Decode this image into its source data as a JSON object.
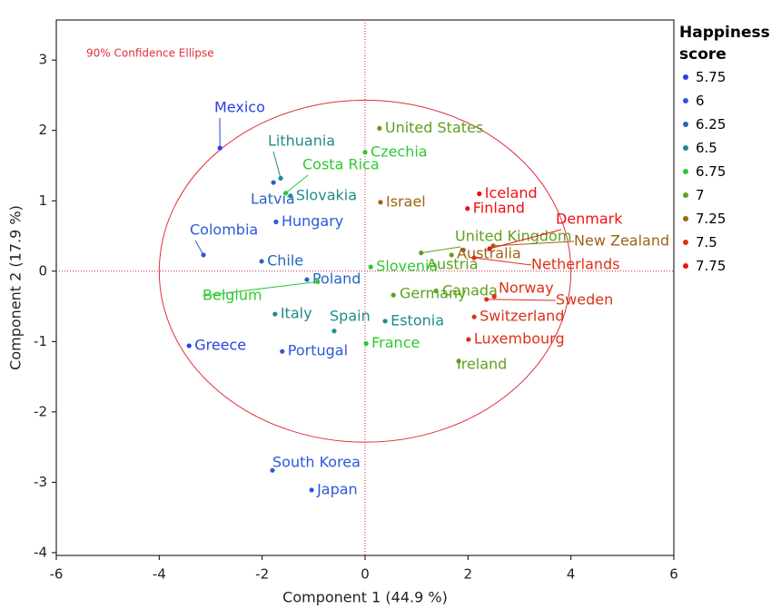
{
  "chart_data": {
    "type": "scatter",
    "annotation": "90% Confidence Ellipse",
    "x_label": "Component 1  (44.9 %)",
    "y_label": "Component 2  (17.9 %)",
    "legend_title": "Happiness score",
    "xlim": [
      -6,
      6
    ],
    "ylim": [
      -4.04,
      3.57
    ],
    "xticks": [
      -6,
      -4,
      -2,
      0,
      2,
      4,
      6
    ],
    "yticks": [
      -4,
      -3,
      -2,
      -1,
      0,
      1,
      2,
      3
    ],
    "reference_lines": {
      "x": [
        0
      ],
      "y": [
        0
      ],
      "color": "#d0243c"
    },
    "ellipse": {
      "cx": 0,
      "cy": 0,
      "rx": 4.0,
      "ry": 2.43,
      "color": "#e0303c"
    },
    "series": [
      {
        "name": "5.75",
        "color": "#2b3fe6",
        "labels": [
          "Mexico",
          "Greece"
        ],
        "x": [
          -2.82,
          -3.42
        ],
        "y": [
          1.75,
          -1.06
        ]
      },
      {
        "name": "6",
        "color": "#2d58dc",
        "labels": [
          "Hungary",
          "Colombia",
          "Portugal",
          "South Korea",
          "Japan"
        ],
        "x": [
          -1.73,
          -3.14,
          -1.61,
          -1.8,
          -1.04
        ],
        "y": [
          0.7,
          0.23,
          -1.14,
          -2.83,
          -3.11
        ]
      },
      {
        "name": "6.25",
        "color": "#2466c2",
        "labels": [
          "Latvia",
          "Chile",
          "Poland"
        ],
        "x": [
          -1.78,
          -2.01,
          -1.13
        ],
        "y": [
          1.26,
          0.14,
          -0.12
        ]
      },
      {
        "name": "6.5",
        "color": "#1f8c8c",
        "labels": [
          "Lithuania",
          "Slovakia",
          "Italy",
          "Spain",
          "Estonia"
        ],
        "x": [
          -1.64,
          -1.45,
          -1.75,
          -0.6,
          0.39
        ],
        "y": [
          1.32,
          1.07,
          -0.61,
          -0.85,
          -0.71
        ]
      },
      {
        "name": "6.75",
        "color": "#2ec832",
        "labels": [
          "Costa Rica",
          "Czechia",
          "Belgium",
          "Slovenia",
          "France"
        ],
        "x": [
          -1.54,
          0.0,
          -0.92,
          0.11,
          0.02
        ],
        "y": [
          1.11,
          1.69,
          -0.15,
          0.06,
          -1.03
        ]
      },
      {
        "name": "7",
        "color": "#5fa01e",
        "labels": [
          "United States",
          "Germany",
          "Canada",
          "United Kingdom",
          "Austria",
          "Ireland"
        ],
        "x": [
          0.28,
          0.55,
          1.38,
          1.09,
          1.68,
          1.82
        ],
        "y": [
          2.03,
          -0.34,
          -0.28,
          0.26,
          0.23,
          -1.28
        ]
      },
      {
        "name": "7.25",
        "color": "#9c6414",
        "labels": [
          "Israel",
          "Australia",
          "New Zealand"
        ],
        "x": [
          0.3,
          1.91,
          2.49
        ],
        "y": [
          0.98,
          0.3,
          0.36
        ]
      },
      {
        "name": "7.5",
        "color": "#dc3218",
        "labels": [
          "Netherlands",
          "Norway",
          "Sweden",
          "Switzerland",
          "Luxembourg"
        ],
        "x": [
          2.12,
          2.51,
          2.36,
          2.12,
          2.01
        ],
        "y": [
          0.19,
          -0.36,
          -0.4,
          -0.65,
          -0.97
        ]
      },
      {
        "name": "7.75",
        "color": "#f01010",
        "labels": [
          "Iceland",
          "Finland",
          "Denmark"
        ],
        "x": [
          2.22,
          1.99,
          2.42
        ],
        "y": [
          1.1,
          0.89,
          0.32
        ]
      }
    ]
  }
}
